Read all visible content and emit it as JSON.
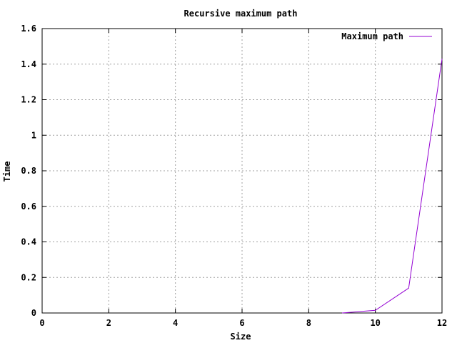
{
  "chart_data": {
    "type": "line",
    "title": "Recursive maximum path",
    "xlabel": "Size",
    "ylabel": "Time",
    "xlim": [
      0,
      12
    ],
    "ylim": [
      0,
      1.6
    ],
    "x_ticks": [
      "0",
      "2",
      "4",
      "6",
      "8",
      "10",
      "12"
    ],
    "y_ticks": [
      "0",
      "0.2",
      "0.4",
      "0.6",
      "0.8",
      "1",
      "1.2",
      "1.4",
      "1.6"
    ],
    "grid": true,
    "legend_position": "top-right",
    "series": [
      {
        "name": "Maximum path",
        "color": "#9400d3",
        "x": [
          9,
          10,
          11,
          12
        ],
        "y": [
          0.0,
          0.015,
          0.14,
          1.43
        ]
      }
    ]
  }
}
